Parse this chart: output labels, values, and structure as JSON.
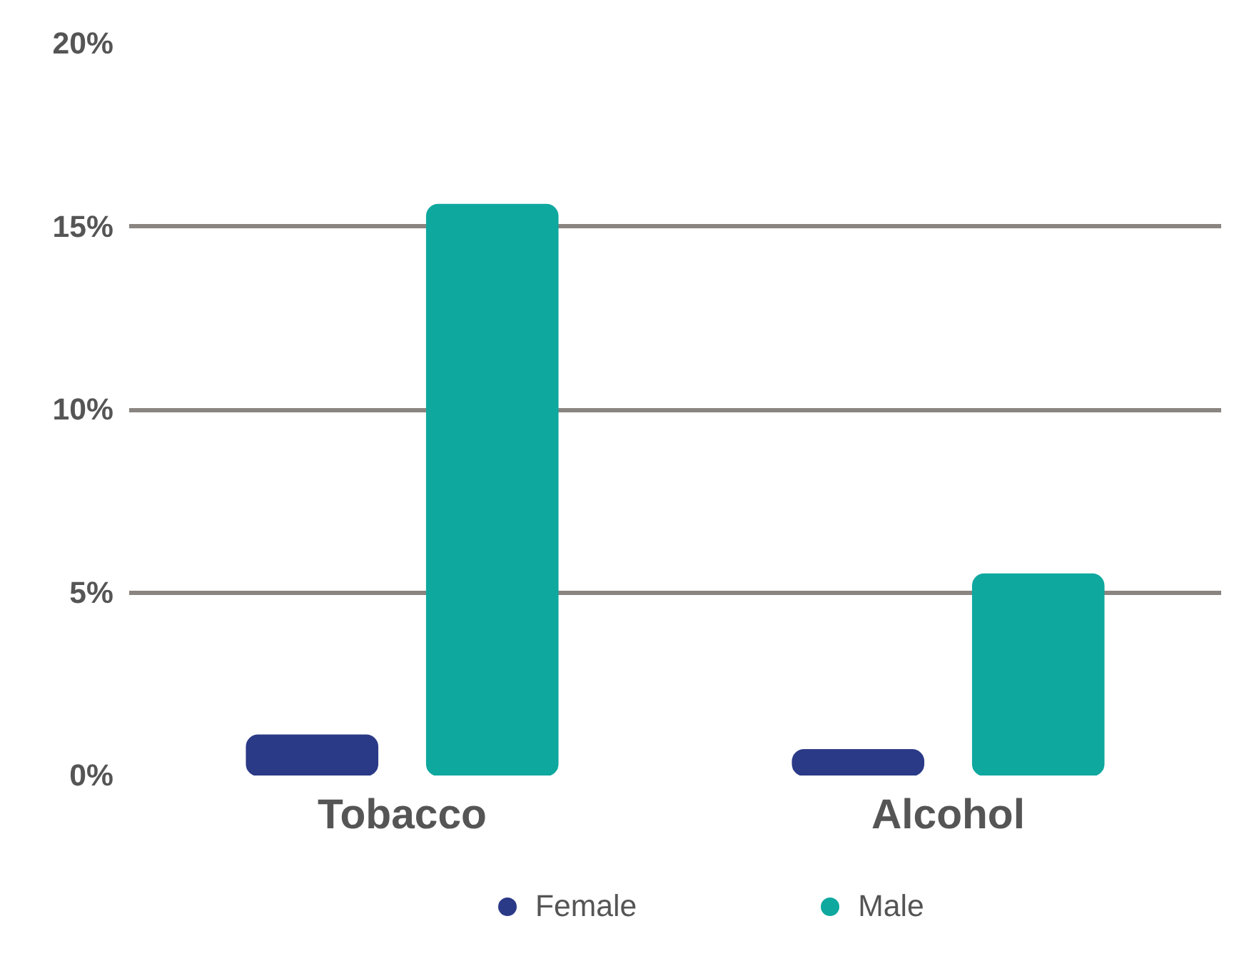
{
  "chart_data": {
    "type": "bar",
    "categories": [
      "Tobacco",
      "Alcohol"
    ],
    "series": [
      {
        "name": "Female",
        "color": "#2b3a87",
        "values": [
          1.1,
          0.7
        ]
      },
      {
        "name": "Male",
        "color": "#0ea89f",
        "values": [
          15.6,
          5.5
        ]
      }
    ],
    "ylim": [
      0,
      20
    ],
    "yticks": [
      {
        "value": 0,
        "label": "0%"
      },
      {
        "value": 5,
        "label": "5%"
      },
      {
        "value": 10,
        "label": "10%"
      },
      {
        "value": 15,
        "label": "15%"
      },
      {
        "value": 20,
        "label": "20%"
      }
    ],
    "grid": "y",
    "legend": "bottom"
  }
}
